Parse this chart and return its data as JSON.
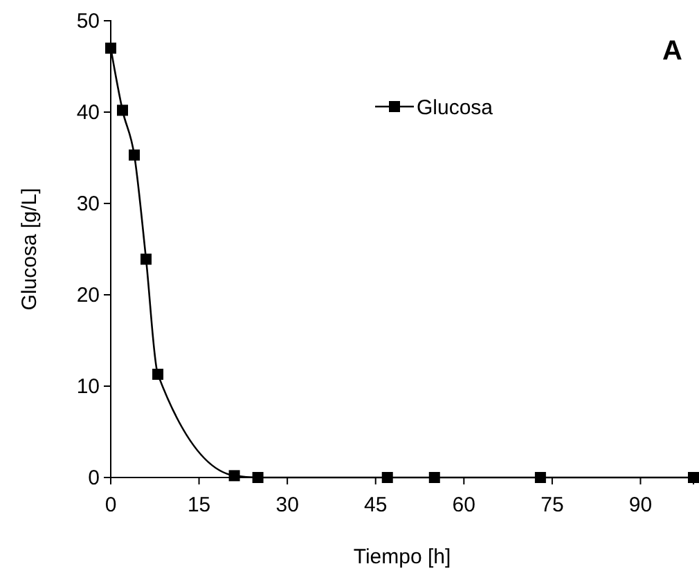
{
  "chart_data": {
    "type": "line",
    "xlabel": "Tiempo [h]",
    "ylabel": "Glucosa  [g/L]",
    "annotations": [
      "A"
    ],
    "x": [
      0,
      2,
      4,
      6,
      8,
      21,
      25,
      47,
      55,
      73,
      99
    ],
    "series": [
      {
        "name": "Glucosa",
        "color": "#000000",
        "values": [
          47,
          40.2,
          35.3,
          23.9,
          11.3,
          0.2,
          0,
          0,
          0,
          0,
          0
        ]
      }
    ],
    "xlim": [
      0,
      99
    ],
    "xticks": [
      0,
      15,
      30,
      45,
      60,
      75,
      90
    ],
    "ylim": [
      0,
      50
    ],
    "yticks": [
      0,
      10,
      20,
      30,
      40,
      50
    ],
    "legend": "top right",
    "marker": "square",
    "line_style": "solid",
    "grid": false
  }
}
